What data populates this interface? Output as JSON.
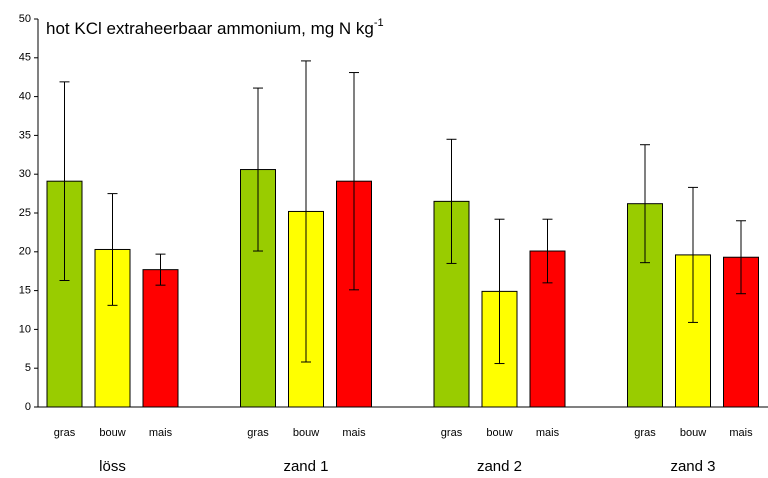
{
  "chart_data": {
    "type": "bar",
    "title": "hot KCl extraheerbaar ammonium, mg N kg",
    "title_superscript": "-1",
    "categories": [
      "löss",
      "zand 1",
      "zand 2",
      "zand 3"
    ],
    "series": [
      {
        "name": "gras",
        "color": "#99cc00",
        "values": [
          29.1,
          30.6,
          26.5,
          26.2
        ],
        "errors": [
          12.8,
          10.5,
          8.0,
          7.6
        ]
      },
      {
        "name": "bouw",
        "color": "#ffff00",
        "values": [
          20.3,
          25.2,
          14.9,
          19.6
        ],
        "errors": [
          7.2,
          19.4,
          9.3,
          8.7
        ]
      },
      {
        "name": "mais",
        "color": "#ff0000",
        "values": [
          17.7,
          29.1,
          20.1,
          19.3
        ],
        "errors": [
          2.0,
          14.0,
          4.1,
          4.7
        ]
      }
    ],
    "ylim": [
      0,
      50
    ],
    "yticks": [
      0,
      5,
      10,
      15,
      20,
      25,
      30,
      35,
      40,
      45,
      50
    ],
    "grid": false
  }
}
